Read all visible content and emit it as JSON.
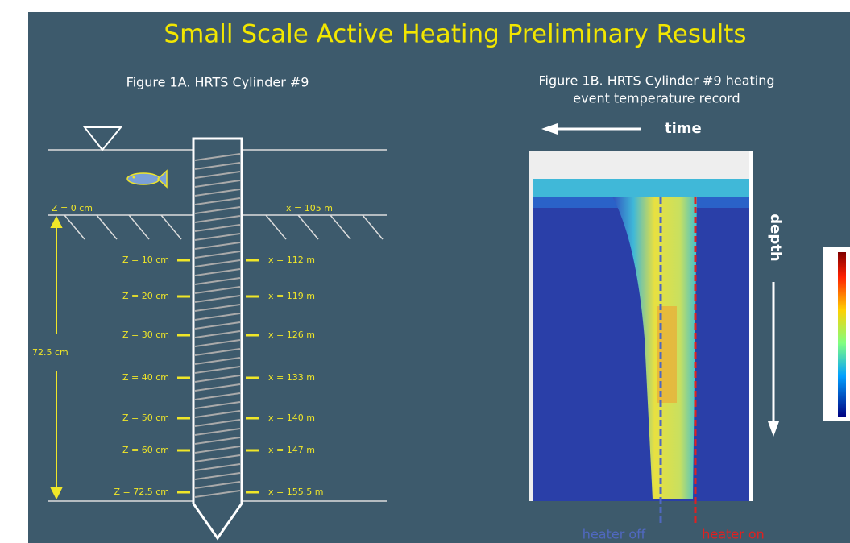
{
  "title": "Small Scale Active Heating Preliminary Results",
  "figure_1a": {
    "title": "Figure 1A. HRTS Cylinder #9",
    "surface_z": "Z = 0 cm",
    "surface_x": "x = 105 m",
    "depth_span": "72.5 cm",
    "levels": [
      {
        "z": "Z = 10 cm",
        "x": "x = 112 m"
      },
      {
        "z": "Z = 20 cm",
        "x": "x = 119 m"
      },
      {
        "z": "Z = 30 cm",
        "x": "x = 126 m"
      },
      {
        "z": "Z = 40 cm",
        "x": "x = 133 m"
      },
      {
        "z": "Z = 50 cm",
        "x": "x = 140 m"
      },
      {
        "z": "Z = 60 cm",
        "x": "x = 147 m"
      },
      {
        "z": "Z = 72.5 cm",
        "x": "x = 155.5 m"
      }
    ]
  },
  "figure_1b": {
    "title": [
      "Figure 1B. HRTS Cylinder #9 heating",
      "event temperature record"
    ],
    "time_label": "time",
    "depth_label": "depth",
    "heater_off": "heater off",
    "heater_on": "heater on"
  }
}
